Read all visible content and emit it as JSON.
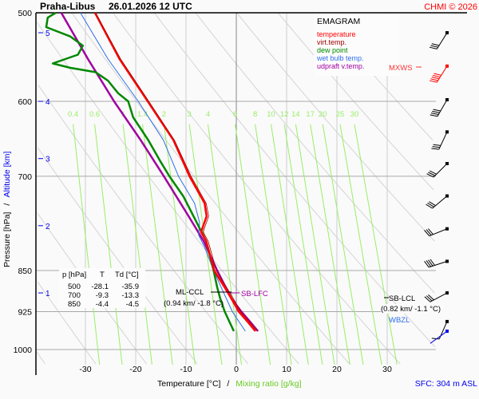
{
  "header": {
    "station": "Praha-Libus",
    "datetime": "26.01.2026 12 UTC",
    "copyright": "CHMI © 2026"
  },
  "colors": {
    "temperature": "#ff0000",
    "virt_temp": "#a00000",
    "dew_point": "#008800",
    "wet_bulb": "#2f6fe8",
    "updraft": "#a000a0",
    "mixing_ratio": "#99ee66",
    "altitude": "#0000ee"
  },
  "legend": {
    "title": "EMAGRAM",
    "items": [
      "temperature",
      "virt.temp.",
      "dew point",
      "wet bulb temp.",
      "udpraft v.temp."
    ]
  },
  "table": {
    "headers": [
      "p [hPa]",
      "T",
      "Td [°C]"
    ],
    "rows": [
      [
        "500",
        "-28.1",
        "-35.9"
      ],
      [
        "700",
        "-9.3",
        "-13.3"
      ],
      [
        "850",
        "-4.4",
        "-4.5"
      ]
    ]
  },
  "annotations": {
    "ml_ccl": "ML-CCL",
    "ml_ccl_value": "(0.94 km/ -1.8 °C)",
    "sb_lfc": "SB-LFC",
    "sb_lcl": "SB-LCL",
    "sb_lcl_value": "(0.82 km/ -1.1 °C)",
    "wbzl": "WBZL",
    "mxws": "MXWS",
    "sfc": "SFC: 304 m ASL"
  },
  "axes": {
    "xlabel_temp": "Temperature [°C]",
    "xlabel_sep": "/",
    "xlabel_mix": "Mixing ratio [g/kg]",
    "ylabel_pressure": "Pressure [hPa]",
    "ylabel_sep": "/",
    "ylabel_alt": "Altitude [km]"
  },
  "chart_data": {
    "type": "line",
    "title": "EMAGRAM",
    "xlabel": "Temperature [°C] / Mixing ratio [g/kg]",
    "ylabel": "Pressure [hPa] / Altitude [km]",
    "xlim": [
      -40,
      31
    ],
    "ylim": [
      1030,
      500
    ],
    "yscale": "log",
    "x_ticks": [
      "-30",
      "-20",
      "-10",
      "0",
      "10",
      "20",
      "30"
    ],
    "y_ticks": [
      "500",
      "600",
      "700",
      "850",
      "925",
      "1000"
    ],
    "altitude_ticks": [
      {
        "km": "5",
        "p": 521
      },
      {
        "km": "4",
        "p": 600
      },
      {
        "km": "3",
        "p": 675
      },
      {
        "km": "2",
        "p": 775
      },
      {
        "km": "1",
        "p": 890
      }
    ],
    "mixing_ratio_labels": [
      "0.4",
      "0.6",
      "1",
      "1.4",
      "2",
      "3",
      "4",
      "6",
      "8",
      "10",
      "12",
      "14",
      "17",
      "20",
      "25",
      "30"
    ],
    "series": [
      {
        "name": "temperature",
        "points": [
          [
            500,
            -28.1
          ],
          [
            550,
            -23.2
          ],
          [
            600,
            -17.6
          ],
          [
            650,
            -12.5
          ],
          [
            700,
            -9.3
          ],
          [
            740,
            -6.3
          ],
          [
            760,
            -5.9
          ],
          [
            785,
            -7.0
          ],
          [
            800,
            -6.0
          ],
          [
            830,
            -5.0
          ],
          [
            850,
            -4.4
          ],
          [
            880,
            -2.3
          ],
          [
            900,
            -1.0
          ],
          [
            925,
            0.5
          ],
          [
            945,
            2.3
          ],
          [
            963,
            3.8
          ]
        ]
      },
      {
        "name": "virt.temp.",
        "points": [
          [
            500,
            -28.0
          ],
          [
            550,
            -23.0
          ],
          [
            600,
            -17.4
          ],
          [
            650,
            -12.3
          ],
          [
            700,
            -9.0
          ],
          [
            740,
            -6.0
          ],
          [
            760,
            -5.5
          ],
          [
            785,
            -6.6
          ],
          [
            800,
            -5.6
          ],
          [
            830,
            -4.6
          ],
          [
            850,
            -4.0
          ],
          [
            880,
            -1.9
          ],
          [
            900,
            -0.6
          ],
          [
            925,
            0.9
          ],
          [
            945,
            2.7
          ],
          [
            963,
            4.2
          ]
        ]
      },
      {
        "name": "dew point",
        "points": [
          [
            500,
            -35.9
          ],
          [
            505,
            -37.5
          ],
          [
            515,
            -37.8
          ],
          [
            525,
            -33
          ],
          [
            535,
            -30.5
          ],
          [
            545,
            -31.5
          ],
          [
            555,
            -36.5
          ],
          [
            560,
            -33
          ],
          [
            565,
            -28
          ],
          [
            575,
            -25.5
          ],
          [
            590,
            -23.5
          ],
          [
            600,
            -21.5
          ],
          [
            620,
            -20.5
          ],
          [
            650,
            -17.5
          ],
          [
            680,
            -15
          ],
          [
            700,
            -13.3
          ],
          [
            730,
            -10.5
          ],
          [
            760,
            -8.5
          ],
          [
            800,
            -6
          ],
          [
            850,
            -4.5
          ],
          [
            880,
            -3.8
          ],
          [
            900,
            -3.2
          ],
          [
            925,
            -2.3
          ],
          [
            963,
            -0.5
          ]
        ]
      },
      {
        "name": "wet bulb temp.",
        "points": [
          [
            500,
            -31
          ],
          [
            550,
            -25.5
          ],
          [
            600,
            -19.5
          ],
          [
            650,
            -14.5
          ],
          [
            700,
            -11.5
          ],
          [
            740,
            -8.3
          ],
          [
            770,
            -7.3
          ],
          [
            790,
            -7.5
          ],
          [
            810,
            -6.3
          ],
          [
            850,
            -4.5
          ],
          [
            900,
            -2
          ],
          [
            925,
            -0.8
          ],
          [
            963,
            1.8
          ]
        ]
      },
      {
        "name": "udpraft v.temp.",
        "points": [
          [
            500,
            -34.8
          ],
          [
            550,
            -29.5
          ],
          [
            600,
            -24.3
          ],
          [
            650,
            -19
          ],
          [
            700,
            -14.4
          ],
          [
            760,
            -9.5
          ],
          [
            800,
            -6.5
          ],
          [
            850,
            -3.8
          ],
          [
            900,
            -1
          ],
          [
            925,
            1
          ],
          [
            945,
            2.8
          ],
          [
            963,
            4.3
          ]
        ]
      }
    ],
    "wind_barbs": [
      {
        "p": 521,
        "dir": 32,
        "kt": 30
      },
      {
        "p": 558,
        "dir": 32,
        "kt": 50,
        "max_wind": true
      },
      {
        "p": 598,
        "dir": 30,
        "kt": 40
      },
      {
        "p": 639,
        "dir": 25,
        "kt": 30
      },
      {
        "p": 682,
        "dir": 45,
        "kt": 30
      },
      {
        "p": 729,
        "dir": 50,
        "kt": 30
      },
      {
        "p": 780,
        "dir": 68,
        "kt": 30
      },
      {
        "p": 834,
        "dir": 72,
        "kt": 40
      },
      {
        "p": 890,
        "dir": 62,
        "kt": 30
      },
      {
        "p": 944,
        "dir": 24,
        "kt": 10
      },
      {
        "p": 963,
        "dir": 54,
        "kt": 0,
        "surface": true
      }
    ]
  }
}
